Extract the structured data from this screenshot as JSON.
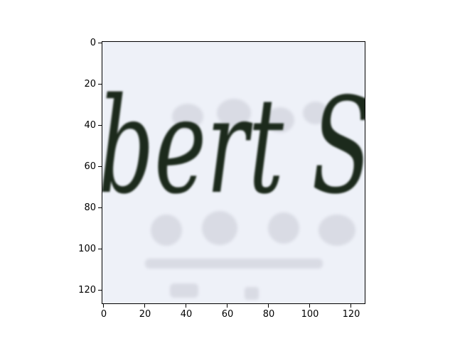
{
  "figure": {
    "word_fragment": "bert S",
    "x_ticks": [
      "0",
      "20",
      "40",
      "60",
      "80",
      "100",
      "120"
    ],
    "y_ticks": [
      "0",
      "20",
      "40",
      "60",
      "80",
      "100",
      "120"
    ],
    "ink_color": "#1f2a1c",
    "background_color": "#eef1f8",
    "faint_text_color": "#d9dbe4"
  }
}
